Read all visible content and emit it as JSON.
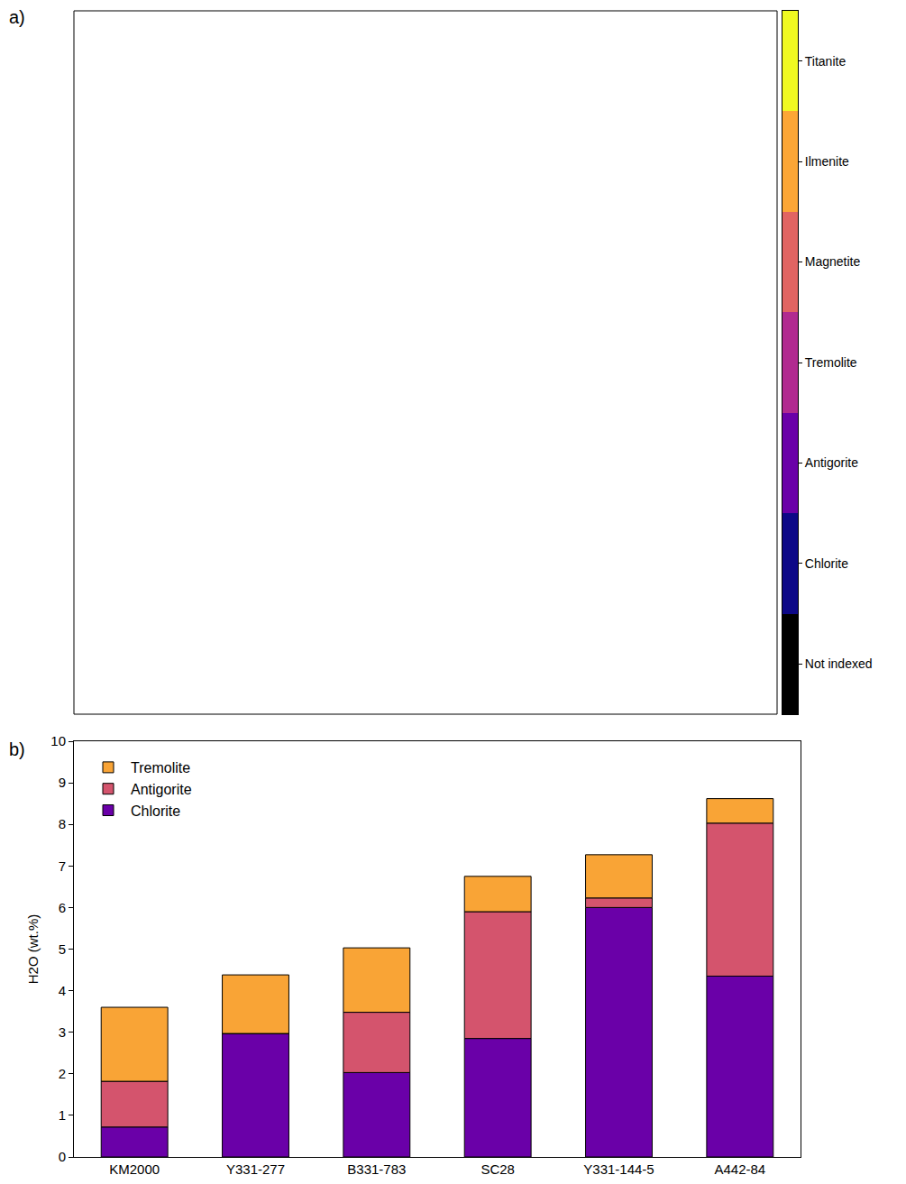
{
  "chart_data": [
    {
      "type": "phase_map",
      "panel_label": "a)",
      "categories": [
        "Titanite",
        "Ilmenite",
        "Magnetite",
        "Tremolite",
        "Antigorite",
        "Chlorite",
        "Not indexed"
      ],
      "colors": [
        "#f0f921",
        "#fca636",
        "#e16462",
        "#b12a90",
        "#6a00a8",
        "#0d0887",
        "#000000"
      ],
      "tick_labels": false
    },
    {
      "type": "bar",
      "panel_label": "b)",
      "stacked": true,
      "categories": [
        "KM2000",
        "Y331-277",
        "B331-783",
        "SC28",
        "Y331-144-5",
        "A442-84"
      ],
      "series": [
        {
          "name": "Chlorite",
          "color": "#6a00a8",
          "values": [
            0.72,
            2.97,
            2.03,
            2.85,
            6.0,
            4.35
          ]
        },
        {
          "name": "Antigorite",
          "color": "#d4546d",
          "values": [
            1.1,
            0,
            1.45,
            3.05,
            0.23,
            3.68
          ]
        },
        {
          "name": "Tremolite",
          "color": "#f9a436",
          "values": [
            1.78,
            1.41,
            1.55,
            0.85,
            1.04,
            0.59
          ]
        }
      ],
      "ylabel": "H2O (wt.%)",
      "ylim": [
        0,
        10
      ],
      "yticks": [
        0,
        1,
        2,
        3,
        4,
        5,
        6,
        7,
        8,
        9,
        10
      ],
      "legend": "top-left",
      "grid": false
    }
  ]
}
